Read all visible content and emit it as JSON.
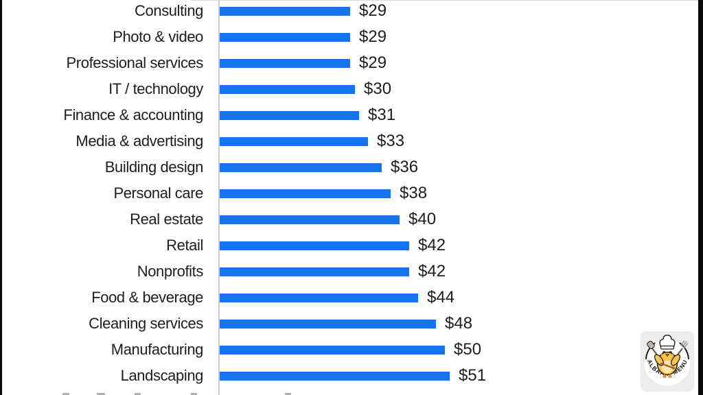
{
  "chart_data": {
    "type": "bar",
    "orientation": "horizontal",
    "title": "",
    "categories": [
      "Consulting",
      "Photo & video",
      "Professional services",
      "IT / technology",
      "Finance & accounting",
      "Media & advertising",
      "Building design",
      "Personal care",
      "Real estate",
      "Retail",
      "Nonprofits",
      "Food & beverage",
      "Cleaning services",
      "Manufacturing",
      "Landscaping"
    ],
    "values": [
      29,
      29,
      29,
      30,
      31,
      33,
      36,
      38,
      40,
      42,
      42,
      44,
      48,
      50,
      51
    ],
    "value_labels": [
      "$29",
      "$29",
      "$29",
      "$30",
      "$31",
      "$33",
      "$36",
      "$38",
      "$40",
      "$42",
      "$42",
      "$44",
      "$48",
      "$50",
      "$51"
    ],
    "bar_color": "#1573ee",
    "axis_color": "#cbcbcb",
    "text_color": "#1d1d1d",
    "grid": false,
    "legend": false,
    "data_labels": "outside-end"
  },
  "logo": {
    "text": "ALBAAIK MENU"
  }
}
